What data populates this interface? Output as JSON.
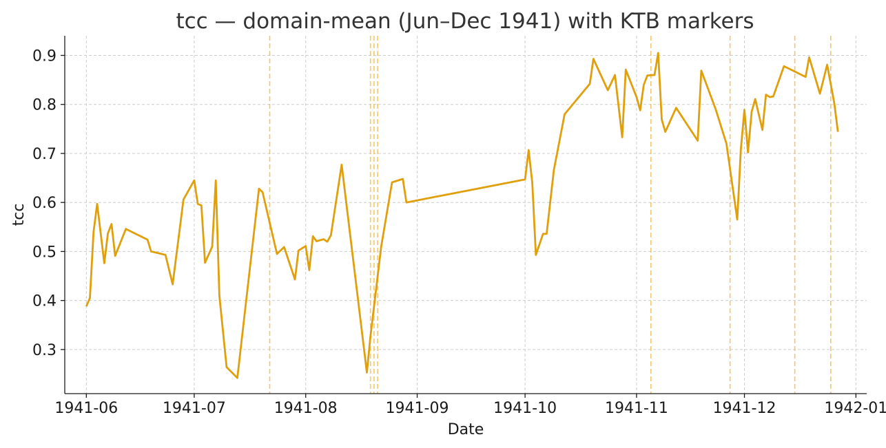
{
  "chart_data": {
    "type": "line",
    "title": "tcc — domain-mean (Jun–Dec 1941) with KTB markers",
    "xlabel": "Date",
    "ylabel": "tcc",
    "xlim": [
      "1941-05-26",
      "1942-01-04"
    ],
    "ylim": [
      0.21,
      0.94
    ],
    "x_ticks": [
      "1941-06-01",
      "1941-07-01",
      "1941-08-01",
      "1941-09-01",
      "1941-10-01",
      "1941-11-01",
      "1941-12-01",
      "1942-01-01"
    ],
    "x_tick_labels": [
      "1941-06",
      "1941-07",
      "1941-08",
      "1941-09",
      "1941-10",
      "1941-11",
      "1941-12",
      "1942-01"
    ],
    "y_ticks": [
      0.3,
      0.4,
      0.5,
      0.6,
      0.7,
      0.8,
      0.9
    ],
    "y_tick_labels": [
      "0.3",
      "0.4",
      "0.5",
      "0.6",
      "0.7",
      "0.8",
      "0.9"
    ],
    "grid": true,
    "series_color": "#e09f0c",
    "marker_color": "#f0b43c",
    "series": [
      {
        "x": [
          "1941-06-01",
          "1941-06-02",
          "1941-06-03",
          "1941-06-04",
          "1941-06-06",
          "1941-06-07",
          "1941-06-08",
          "1941-06-09",
          "1941-06-12",
          "1941-06-18",
          "1941-06-19",
          "1941-06-23",
          "1941-06-25",
          "1941-06-26",
          "1941-06-28",
          "1941-07-01",
          "1941-07-02",
          "1941-07-03",
          "1941-07-04",
          "1941-07-06",
          "1941-07-07",
          "1941-07-08",
          "1941-07-10",
          "1941-07-13",
          "1941-07-19",
          "1941-07-20",
          "1941-07-24",
          "1941-07-26",
          "1941-07-29",
          "1941-07-30",
          "1941-08-01",
          "1941-08-02",
          "1941-08-03",
          "1941-08-04",
          "1941-08-06",
          "1941-08-07",
          "1941-08-08",
          "1941-08-11",
          "1941-08-18",
          "1941-08-19",
          "1941-08-22",
          "1941-08-25",
          "1941-08-28",
          "1941-08-29",
          "1941-10-01",
          "1941-10-02",
          "1941-10-03",
          "1941-10-04",
          "1941-10-06",
          "1941-10-07",
          "1941-10-09",
          "1941-10-12",
          "1941-10-19",
          "1941-10-20",
          "1941-10-24",
          "1941-10-26",
          "1941-10-28",
          "1941-10-29",
          "1941-11-01",
          "1941-11-02",
          "1941-11-03",
          "1941-11-04",
          "1941-11-06",
          "1941-11-07",
          "1941-11-08",
          "1941-11-09",
          "1941-11-12",
          "1941-11-18",
          "1941-11-19",
          "1941-11-23",
          "1941-11-26",
          "1941-11-29",
          "1941-11-30",
          "1941-12-01",
          "1941-12-02",
          "1941-12-03",
          "1941-12-04",
          "1941-12-06",
          "1941-12-07",
          "1941-12-08",
          "1941-12-09",
          "1941-12-12",
          "1941-12-18",
          "1941-12-19",
          "1941-12-22",
          "1941-12-24",
          "1941-12-26",
          "1941-12-27"
        ],
        "y": [
          0.388,
          0.405,
          0.54,
          0.597,
          0.476,
          0.537,
          0.556,
          0.491,
          0.546,
          0.524,
          0.5,
          0.493,
          0.433,
          0.49,
          0.606,
          0.645,
          0.597,
          0.594,
          0.477,
          0.51,
          0.645,
          0.41,
          0.264,
          0.242,
          0.628,
          0.621,
          0.495,
          0.509,
          0.443,
          0.502,
          0.511,
          0.462,
          0.531,
          0.521,
          0.525,
          0.52,
          0.533,
          0.677,
          0.253,
          0.327,
          0.51,
          0.641,
          0.648,
          0.6,
          0.647,
          0.707,
          0.64,
          0.493,
          0.536,
          0.536,
          0.666,
          0.78,
          0.842,
          0.893,
          0.829,
          0.86,
          0.733,
          0.871,
          0.815,
          0.788,
          0.84,
          0.859,
          0.86,
          0.905,
          0.769,
          0.744,
          0.793,
          0.726,
          0.869,
          0.79,
          0.72,
          0.565,
          0.708,
          0.789,
          0.702,
          0.785,
          0.811,
          0.748,
          0.82,
          0.815,
          0.816,
          0.878,
          0.856,
          0.896,
          0.822,
          0.881,
          0.802,
          0.744
        ]
      }
    ],
    "ktb_markers": [
      "1941-07-22",
      "1941-08-19",
      "1941-08-20",
      "1941-08-21",
      "1941-11-05",
      "1941-11-27",
      "1941-12-15",
      "1941-12-25"
    ]
  }
}
